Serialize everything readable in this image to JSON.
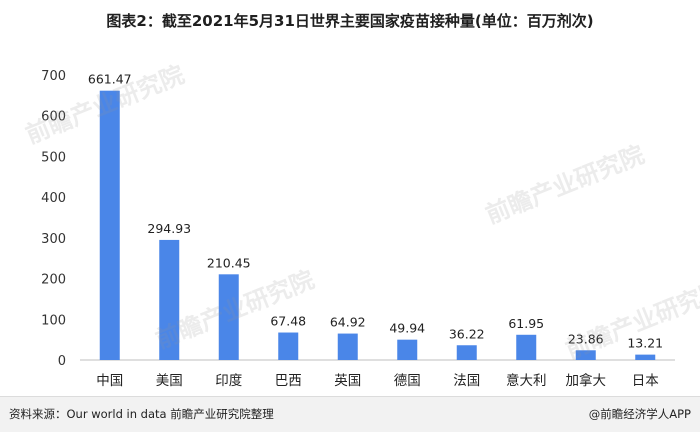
{
  "title": "图表2：截至2021年5月31日世界主要国家疫苗接种量(单位：百万剂次)",
  "footer": {
    "source": "资料来源：Our world in data 前瞻产业研究院整理",
    "brand": "@前瞻经济学人APP"
  },
  "watermark": "前瞻产业研究院",
  "chart_data": {
    "type": "bar",
    "title": "图表2：截至2021年5月31日世界主要国家疫苗接种量(单位：百万剂次)",
    "categories": [
      "中国",
      "美国",
      "印度",
      "巴西",
      "英国",
      "德国",
      "法国",
      "意大利",
      "加拿大",
      "日本"
    ],
    "values": [
      661.47,
      294.93,
      210.45,
      67.48,
      64.92,
      49.94,
      36.22,
      61.95,
      23.86,
      13.21
    ],
    "value_labels": [
      "661.47",
      "294.93",
      "210.45",
      "67.48",
      "64.92",
      "49.94",
      "36.22",
      "61.95",
      "23.86",
      "13.21"
    ],
    "yticks": [
      "0",
      "100",
      "200",
      "300",
      "400",
      "500",
      "600",
      "700"
    ],
    "ylim": [
      0,
      700
    ],
    "grid": false,
    "legend": "none",
    "bar_color": "#4a86e8"
  }
}
